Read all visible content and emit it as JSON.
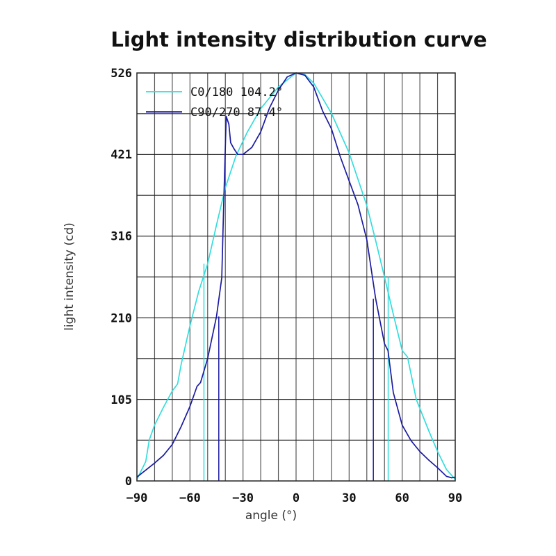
{
  "chart_data": {
    "type": "line",
    "title": "Light intensity distribution curve",
    "xlabel": "angle (°)",
    "ylabel": "light intensity (cd)",
    "xlim": [
      -90,
      90
    ],
    "ylim": [
      0,
      526
    ],
    "xticks": [
      -90,
      -60,
      -30,
      0,
      30,
      60,
      90
    ],
    "yticks": [
      0,
      105,
      210,
      316,
      421,
      526
    ],
    "x_grid_step": 10,
    "y_grid_step": 52.6,
    "grid": true,
    "legend_position": "top-left",
    "series": [
      {
        "name": "C0/180 104.2°",
        "color": "#33dddd",
        "beam_angle_markers": [
          -52.1,
          52.1
        ],
        "points": [
          [
            -90,
            2
          ],
          [
            -85,
            25
          ],
          [
            -83,
            53
          ],
          [
            -80,
            72
          ],
          [
            -75,
            95
          ],
          [
            -70,
            116
          ],
          [
            -67,
            125
          ],
          [
            -65,
            150
          ],
          [
            -60,
            200
          ],
          [
            -55,
            245
          ],
          [
            -50,
            280
          ],
          [
            -45,
            330
          ],
          [
            -40,
            378
          ],
          [
            -34,
            419
          ],
          [
            -27.5,
            450
          ],
          [
            -20,
            480
          ],
          [
            -10,
            508
          ],
          [
            0,
            526
          ],
          [
            5,
            524
          ],
          [
            10,
            513
          ],
          [
            20,
            474
          ],
          [
            30,
            423
          ],
          [
            40,
            355
          ],
          [
            45,
            310
          ],
          [
            50,
            263
          ],
          [
            55,
            215
          ],
          [
            60,
            168
          ],
          [
            63,
            160
          ],
          [
            68,
            105
          ],
          [
            75,
            65
          ],
          [
            80,
            38
          ],
          [
            85,
            15
          ],
          [
            90,
            2
          ]
        ]
      },
      {
        "name": "C90/270 87.4°",
        "color": "#1a1aa0",
        "beam_angle_markers": [
          -43.7,
          43.7
        ],
        "points": [
          [
            -90,
            5
          ],
          [
            -85,
            14
          ],
          [
            -80,
            23
          ],
          [
            -75,
            33
          ],
          [
            -70,
            47
          ],
          [
            -65,
            70
          ],
          [
            -60,
            96
          ],
          [
            -56,
            122
          ],
          [
            -54,
            127
          ],
          [
            -50,
            158
          ],
          [
            -45,
            212
          ],
          [
            -42,
            262
          ],
          [
            -41,
            351
          ],
          [
            -40,
            430
          ],
          [
            -39.5,
            470
          ],
          [
            -38,
            460
          ],
          [
            -37,
            436
          ],
          [
            -35,
            428
          ],
          [
            -33,
            421
          ],
          [
            -30,
            421
          ],
          [
            -25,
            430
          ],
          [
            -20,
            450
          ],
          [
            -15,
            481
          ],
          [
            -10,
            504
          ],
          [
            -5,
            521
          ],
          [
            0,
            526
          ],
          [
            5,
            523
          ],
          [
            10,
            508
          ],
          [
            15,
            477
          ],
          [
            20,
            454
          ],
          [
            25,
            418
          ],
          [
            30,
            387
          ],
          [
            35,
            356
          ],
          [
            40,
            311
          ],
          [
            45,
            235
          ],
          [
            50,
            177
          ],
          [
            52,
            168
          ],
          [
            55,
            114
          ],
          [
            60,
            72
          ],
          [
            65,
            52
          ],
          [
            70,
            38
          ],
          [
            75,
            27
          ],
          [
            80,
            17
          ],
          [
            85,
            6
          ],
          [
            88,
            4
          ],
          [
            90,
            5
          ]
        ]
      }
    ]
  }
}
